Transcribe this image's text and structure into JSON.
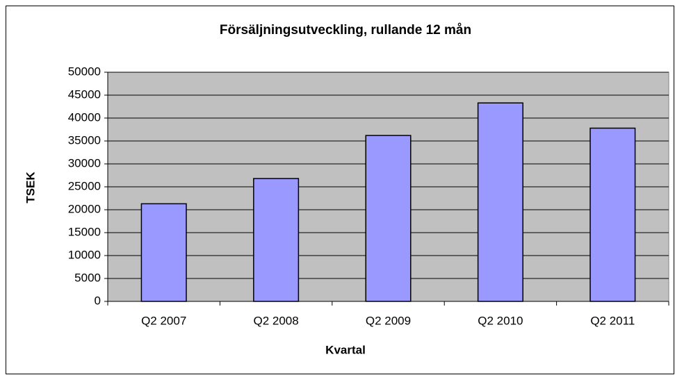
{
  "chart_data": {
    "type": "bar",
    "title": "Försäljningsutveckling, rullande 12 mån",
    "x_label": "Kvartal",
    "y_label": "TSEK",
    "categories": [
      "Q2 2007",
      "Q2 2008",
      "Q2 2009",
      "Q2 2010",
      "Q2 2011"
    ],
    "values": [
      21300,
      26800,
      36200,
      43300,
      37800
    ],
    "color": "#9999ff",
    "ylim": [
      0,
      50000
    ],
    "yticks": [
      0,
      5000,
      10000,
      15000,
      20000,
      25000,
      30000,
      35000,
      40000,
      45000,
      50000
    ],
    "grid": true
  }
}
